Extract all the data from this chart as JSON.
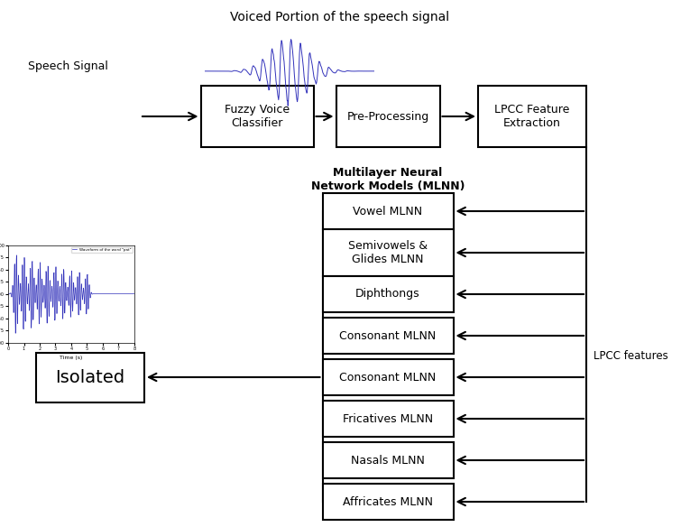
{
  "title": "Voiced Portion of the speech signal",
  "speech_signal_label": "Speech Signal",
  "fvc_label": "Fuzzy Voice\nClassifier",
  "pp_label": "Pre-Processing",
  "lpcc_label": "LPCC Feature\nExtraction",
  "mlnn_label": "Multilayer Neural\nNetwork Models (MLNN)",
  "mlnn_boxes": [
    "Vowel MLNN",
    "Semivowels &\nGlides MLNN",
    "Diphthongs",
    "Consonant MLNN",
    "Consonant MLNN",
    "Fricatives MLNN",
    "Nasals MLNN",
    "Affricates MLNN"
  ],
  "isolated_label": "Isolated",
  "lpcc_features_label": "LPCC features",
  "bg_color": "#ffffff",
  "box_color": "#ffffff",
  "line_color": "#000000",
  "text_color": "#000000",
  "wave_color": "#3333bb"
}
